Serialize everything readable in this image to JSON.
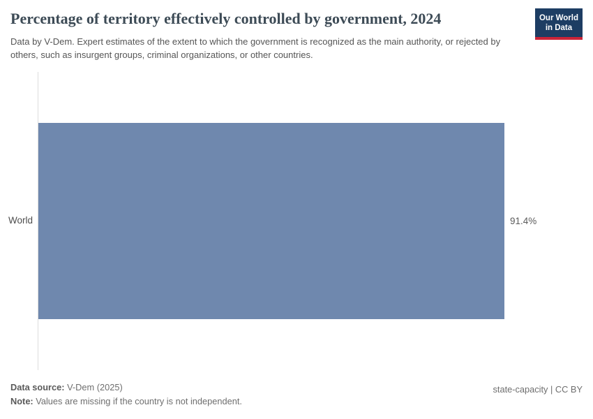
{
  "header": {
    "title": "Percentage of territory effectively controlled by government, 2024",
    "subtitle": "Data by V-Dem. Expert estimates of the extent to which the government is recognized as the main authority, or rejected by others, such as insurgent groups, criminal organizations, or other countries.",
    "logo": {
      "line1": "Our World",
      "line2": "in Data"
    }
  },
  "chart_data": {
    "type": "bar",
    "orientation": "horizontal",
    "categories": [
      "World"
    ],
    "values": [
      91.4
    ],
    "value_labels": [
      "91.4%"
    ],
    "title": "Percentage of territory effectively controlled by government, 2024",
    "xlabel": "",
    "ylabel": "",
    "xlim": [
      0,
      100
    ],
    "grid": false,
    "legend": false,
    "bar_color": "#6f88ae"
  },
  "footer": {
    "data_source_label": "Data source:",
    "data_source_value": "V-Dem (2025)",
    "note_label": "Note:",
    "note_value": "Values are missing if the country is not independent.",
    "credit": "state-capacity | CC BY"
  },
  "colors": {
    "bar": "#6f88ae",
    "logo_bg": "#1d3d63",
    "logo_underline": "#cb2438",
    "axis_line": "#dcdcdc",
    "title_text": "#3d4b56",
    "body_text": "#555555"
  }
}
